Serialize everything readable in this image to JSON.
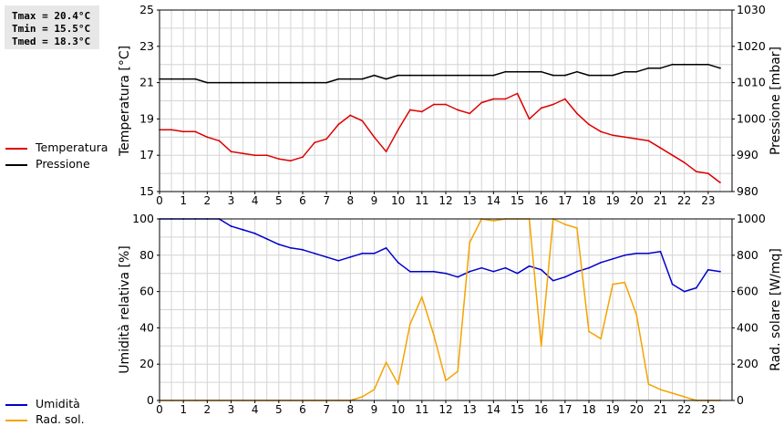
{
  "stats": {
    "tmax": "Tmax = 20.4°C",
    "tmin": "Tmin = 15.5°C",
    "tmed": "Tmed = 18.3°C"
  },
  "legend_top": [
    {
      "label": "Temperatura",
      "color": "#dd0000"
    },
    {
      "label": "Pressione",
      "color": "#000000"
    }
  ],
  "legend_bottom": [
    {
      "label": "Umidità",
      "color": "#0000cc"
    },
    {
      "label": "Rad. sol.",
      "color": "#f5a300"
    }
  ],
  "chart_data": [
    {
      "type": "line",
      "x": [
        0,
        0.5,
        1,
        1.5,
        2,
        2.5,
        3,
        3.5,
        4,
        4.5,
        5,
        5.5,
        6,
        6.5,
        7,
        7.5,
        8,
        8.5,
        9,
        9.5,
        10,
        10.5,
        11,
        11.5,
        12,
        12.5,
        13,
        13.5,
        14,
        14.5,
        15,
        15.5,
        16,
        16.5,
        17,
        17.5,
        18,
        18.5,
        19,
        19.5,
        20,
        20.5,
        21,
        21.5,
        22,
        22.5,
        23,
        23.5
      ],
      "xlim": [
        0,
        24
      ],
      "xticks": [
        "0",
        "1",
        "2",
        "3",
        "4",
        "5",
        "6",
        "7",
        "8",
        "9",
        "10",
        "11",
        "12",
        "13",
        "14",
        "15",
        "16",
        "17",
        "18",
        "19",
        "20",
        "21",
        "22",
        "23"
      ],
      "ylabel": "Temperatura [°C]",
      "ylim": [
        15,
        25
      ],
      "yticks": [
        "15",
        "17",
        "19",
        "21",
        "23",
        "25"
      ],
      "y2label": "Pressione [mbar]",
      "y2lim": [
        980,
        1030
      ],
      "y2ticks": [
        "980",
        "990",
        "1000",
        "1010",
        "1020",
        "1030"
      ],
      "grid": true,
      "series": [
        {
          "name": "Temperatura",
          "axis": "left",
          "color": "#dd0000",
          "values": [
            18.4,
            18.4,
            18.3,
            18.3,
            18.0,
            17.8,
            17.2,
            17.1,
            17.0,
            17.0,
            16.8,
            16.7,
            16.9,
            17.7,
            17.9,
            18.7,
            19.2,
            18.9,
            18.0,
            17.2,
            18.4,
            19.5,
            19.4,
            19.8,
            19.8,
            19.5,
            19.3,
            19.9,
            20.1,
            20.1,
            20.4,
            19.0,
            19.6,
            19.8,
            20.1,
            19.3,
            18.7,
            18.3,
            18.1,
            18.0,
            17.9,
            17.8,
            17.4,
            17.0,
            16.6,
            16.1,
            16.0,
            15.5
          ]
        },
        {
          "name": "Pressione",
          "axis": "right",
          "color": "#000000",
          "values": [
            1011,
            1011,
            1011,
            1011,
            1010,
            1010,
            1010,
            1010,
            1010,
            1010,
            1010,
            1010,
            1010,
            1010,
            1010,
            1011,
            1011,
            1011,
            1012,
            1011,
            1012,
            1012,
            1012,
            1012,
            1012,
            1012,
            1012,
            1012,
            1012,
            1013,
            1013,
            1013,
            1013,
            1012,
            1012,
            1013,
            1012,
            1012,
            1012,
            1013,
            1013,
            1014,
            1014,
            1015,
            1015,
            1015,
            1015,
            1014
          ]
        }
      ]
    },
    {
      "type": "line",
      "x": [
        0,
        0.5,
        1,
        1.5,
        2,
        2.5,
        3,
        3.5,
        4,
        4.5,
        5,
        5.5,
        6,
        6.5,
        7,
        7.5,
        8,
        8.5,
        9,
        9.5,
        10,
        10.5,
        11,
        11.5,
        12,
        12.5,
        13,
        13.5,
        14,
        14.5,
        15,
        15.5,
        16,
        16.5,
        17,
        17.5,
        18,
        18.5,
        19,
        19.5,
        20,
        20.5,
        21,
        21.5,
        22,
        22.5,
        23,
        23.5
      ],
      "xlim": [
        0,
        24
      ],
      "xticks": [
        "0",
        "1",
        "2",
        "3",
        "4",
        "5",
        "6",
        "7",
        "8",
        "9",
        "10",
        "11",
        "12",
        "13",
        "14",
        "15",
        "16",
        "17",
        "18",
        "19",
        "20",
        "21",
        "22",
        "23"
      ],
      "ylabel": "Umidità relativa [%]",
      "ylim": [
        0,
        100
      ],
      "yticks": [
        "0",
        "20",
        "40",
        "60",
        "80",
        "100"
      ],
      "y2label": "Rad. solare [W/mq]",
      "y2lim": [
        0,
        1000
      ],
      "y2ticks": [
        "0",
        "200",
        "400",
        "600",
        "800",
        "1000"
      ],
      "grid": true,
      "series": [
        {
          "name": "Umidità",
          "axis": "left",
          "color": "#0000cc",
          "values": [
            100,
            100,
            100,
            100,
            100,
            100,
            96,
            94,
            92,
            89,
            86,
            84,
            83,
            81,
            79,
            77,
            79,
            81,
            81,
            84,
            76,
            71,
            71,
            71,
            70,
            68,
            71,
            73,
            71,
            73,
            70,
            74,
            72,
            66,
            68,
            71,
            73,
            76,
            78,
            80,
            81,
            81,
            82,
            64,
            60,
            62,
            72,
            71
          ]
        },
        {
          "name": "Rad. sol.",
          "axis": "right",
          "color": "#f5a300",
          "values": [
            0,
            0,
            0,
            0,
            0,
            0,
            0,
            0,
            0,
            0,
            0,
            0,
            0,
            0,
            0,
            0,
            0,
            20,
            60,
            210,
            90,
            420,
            570,
            360,
            110,
            160,
            870,
            1000,
            990,
            1000,
            1000,
            1000,
            300,
            1000,
            970,
            950,
            380,
            340,
            640,
            650,
            470,
            90,
            60,
            40,
            20,
            0,
            0,
            0
          ]
        }
      ]
    }
  ]
}
